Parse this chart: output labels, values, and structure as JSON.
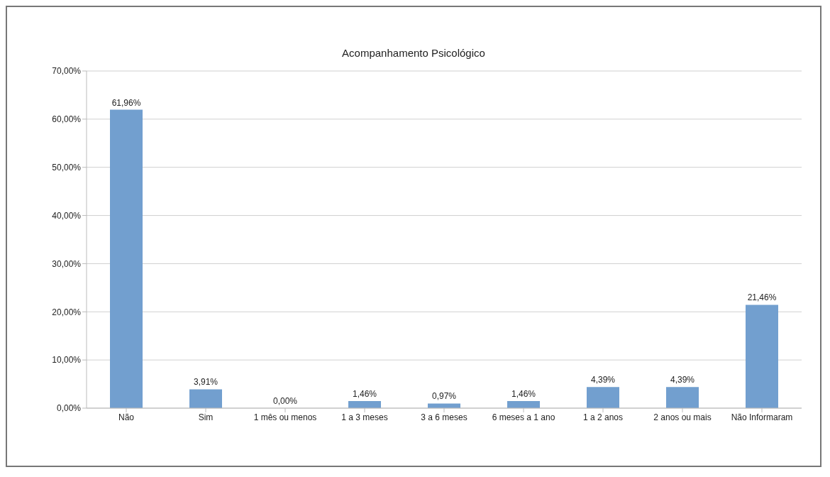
{
  "chart_data": {
    "type": "bar",
    "title": "Acompanhamento Psicológico",
    "categories": [
      "Não",
      "Sim",
      "1 mês ou menos",
      "1 a  3 meses",
      "3 a 6 meses",
      "6 meses a 1 ano",
      "1 a 2 anos",
      "2 anos ou mais",
      "Não Informaram"
    ],
    "values": [
      61.96,
      3.91,
      0,
      1.46,
      0.97,
      1.46,
      4.39,
      4.39,
      21.46
    ],
    "value_labels": [
      "61,96%",
      "3,91%",
      "0,00%",
      "1,46%",
      "0,97%",
      "1,46%",
      "4,39%",
      "4,39%",
      "21,46%"
    ],
    "color": "#729fcf",
    "ylim": [
      0,
      70
    ],
    "yticks": [
      {
        "value": 0,
        "label": "0,00%"
      },
      {
        "value": 10,
        "label": "10,00%"
      },
      {
        "value": 20,
        "label": "20,00%"
      },
      {
        "value": 30,
        "label": "30,00%"
      },
      {
        "value": 40,
        "label": "40,00%"
      },
      {
        "value": 50,
        "label": "50,00%"
      },
      {
        "value": 60,
        "label": "60,00%"
      },
      {
        "value": 70,
        "label": "70,00%"
      }
    ],
    "grid": "y",
    "legend": false
  }
}
